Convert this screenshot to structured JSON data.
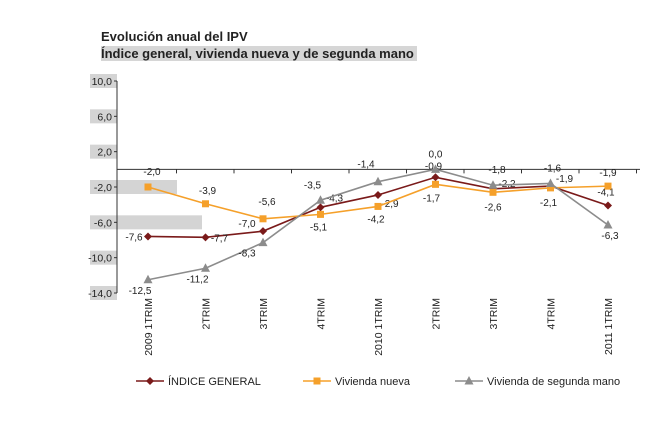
{
  "header": {
    "title": "Evolución anual del IPV",
    "subtitle": "Índice general, vivienda nueva y de segunda mano"
  },
  "chart_data": {
    "type": "line",
    "categories": [
      "2009 1TRIM",
      "2TRIM",
      "3TRIM",
      "4TRIM",
      "2010 1TRIM",
      "2TRIM",
      "3TRIM",
      "4TRIM",
      "2011 1TRIM"
    ],
    "ylim": [
      -14,
      10
    ],
    "yticks": [
      "10,0",
      "6,0",
      "2,0",
      "-2,0",
      "-6,0",
      "-10,0",
      "-14,0"
    ],
    "ytick_values": [
      10,
      6,
      2,
      -2,
      -6,
      -10,
      -14
    ],
    "grid": false,
    "legend_position": "bottom",
    "series": [
      {
        "name": "ÍNDICE GENERAL",
        "color": "#7a1a1a",
        "marker": "diamond",
        "values": [
          -7.6,
          -7.7,
          -7.0,
          -4.3,
          -2.9,
          -0.9,
          -2.2,
          -1.9,
          -4.1
        ],
        "labels": [
          "-7,6",
          "-7,7",
          "-7,0",
          "-4,3",
          "-2,9",
          "-0,9",
          "-2,2",
          "-1,9",
          "-4,1"
        ]
      },
      {
        "name": "Vivienda nueva",
        "color": "#f5a02a",
        "marker": "square",
        "values": [
          -2.0,
          -3.9,
          -5.6,
          -5.1,
          -4.2,
          -1.7,
          -2.6,
          -2.1,
          -1.9
        ],
        "labels": [
          "-2,0",
          "-3,9",
          "-5,6",
          "-5,1",
          "-4,2",
          "-1,7",
          "-2,6",
          "-2,1",
          "-1,9"
        ]
      },
      {
        "name": "Vivienda de segunda mano",
        "color": "#8c8c8c",
        "marker": "triangle",
        "values": [
          -12.5,
          -11.2,
          -8.3,
          -3.5,
          -1.4,
          0.0,
          -1.8,
          -1.6,
          -6.3
        ],
        "labels": [
          "-12,5",
          "-11,2",
          "-8,3",
          "-3,5",
          "-1,4",
          "0,0",
          "-1,8",
          "-1,6",
          "-6,3"
        ]
      }
    ]
  }
}
